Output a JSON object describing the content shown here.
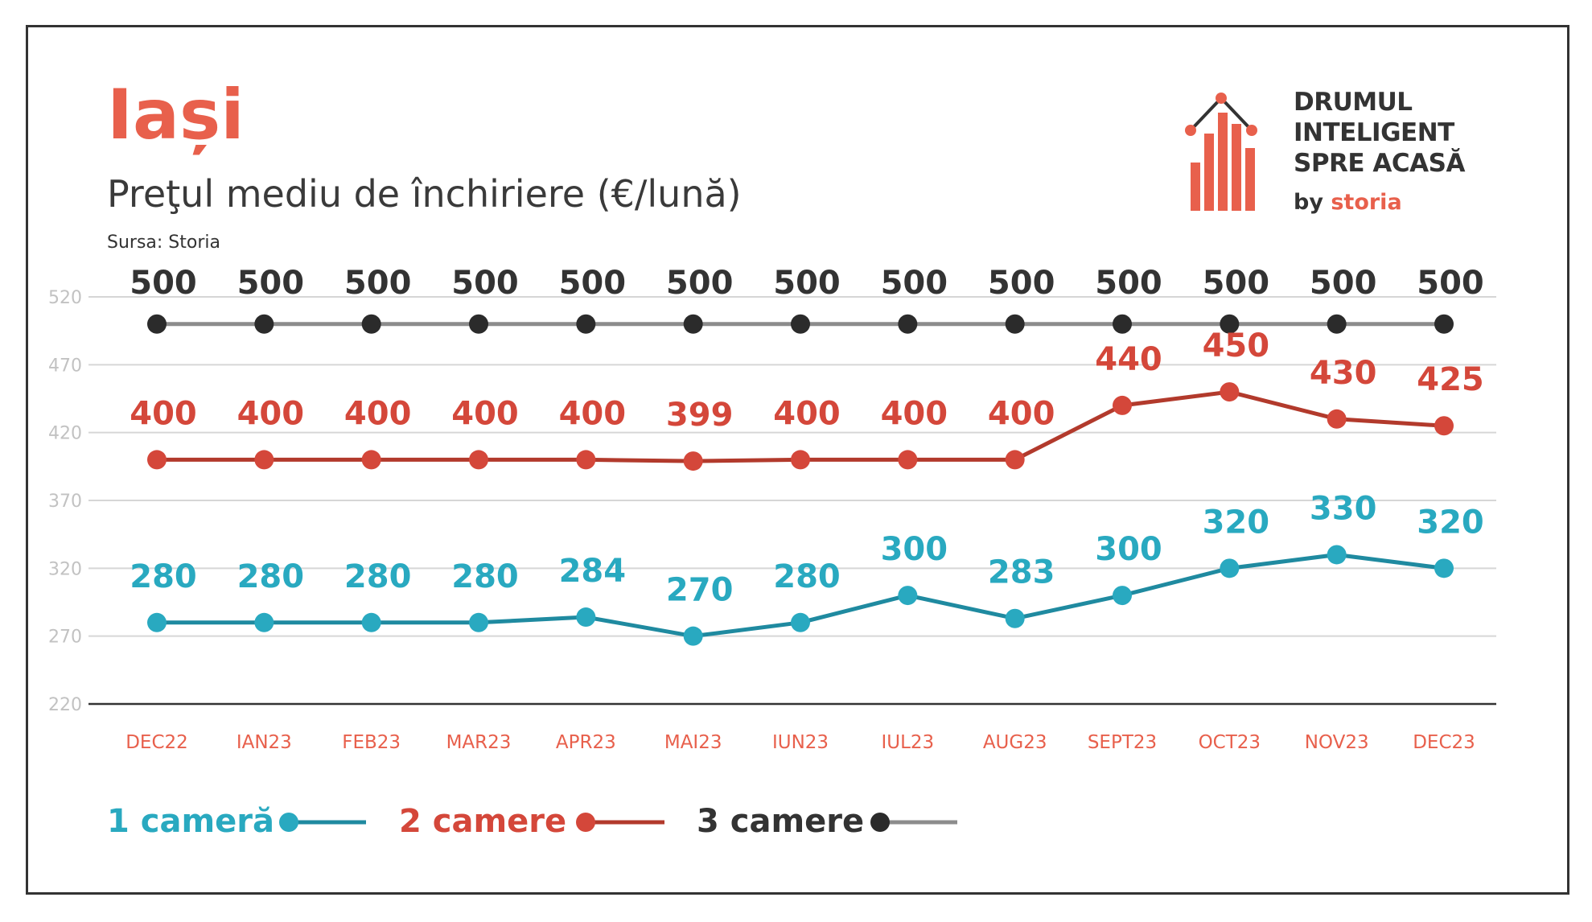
{
  "header": {
    "city": "Iași",
    "subtitle": "Preţul mediu de închiriere (€/lună)",
    "source": "Sursa: Storia"
  },
  "logo": {
    "line1": "DRUMUL",
    "line2": "INTELIGENT",
    "line3": "SPRE ACASĂ",
    "by": "by",
    "brand": "storia"
  },
  "colors": {
    "accent": "#e8604c",
    "series_1": "#1f8aa0",
    "series_1_marker": "#29a9c0",
    "series_2": "#b23a2c",
    "series_2_marker": "#d4473a",
    "series_3_line": "#8c8c8c",
    "series_3_marker": "#2b2b2b",
    "grid": "#d6d6d6",
    "tick": "#c2c2c2"
  },
  "chart_data": {
    "type": "line",
    "categories": [
      "DEC22",
      "IAN23",
      "FEB23",
      "MAR23",
      "APR23",
      "MAI23",
      "IUN23",
      "IUL23",
      "AUG23",
      "SEPT23",
      "OCT23",
      "NOV23",
      "DEC23"
    ],
    "series": [
      {
        "name": "1 cameră",
        "values": [
          280,
          280,
          280,
          280,
          284,
          270,
          280,
          300,
          283,
          300,
          320,
          330,
          320
        ]
      },
      {
        "name": "2 camere",
        "values": [
          400,
          400,
          400,
          400,
          400,
          399,
          400,
          400,
          400,
          440,
          450,
          430,
          425
        ]
      },
      {
        "name": "3 camere",
        "values": [
          500,
          500,
          500,
          500,
          500,
          500,
          500,
          500,
          500,
          500,
          500,
          500,
          500
        ]
      }
    ],
    "ylim": [
      220,
      520
    ],
    "yticks": [
      520,
      470,
      420,
      370,
      320,
      270,
      220
    ],
    "grid": true,
    "legend": "bottom-left"
  }
}
